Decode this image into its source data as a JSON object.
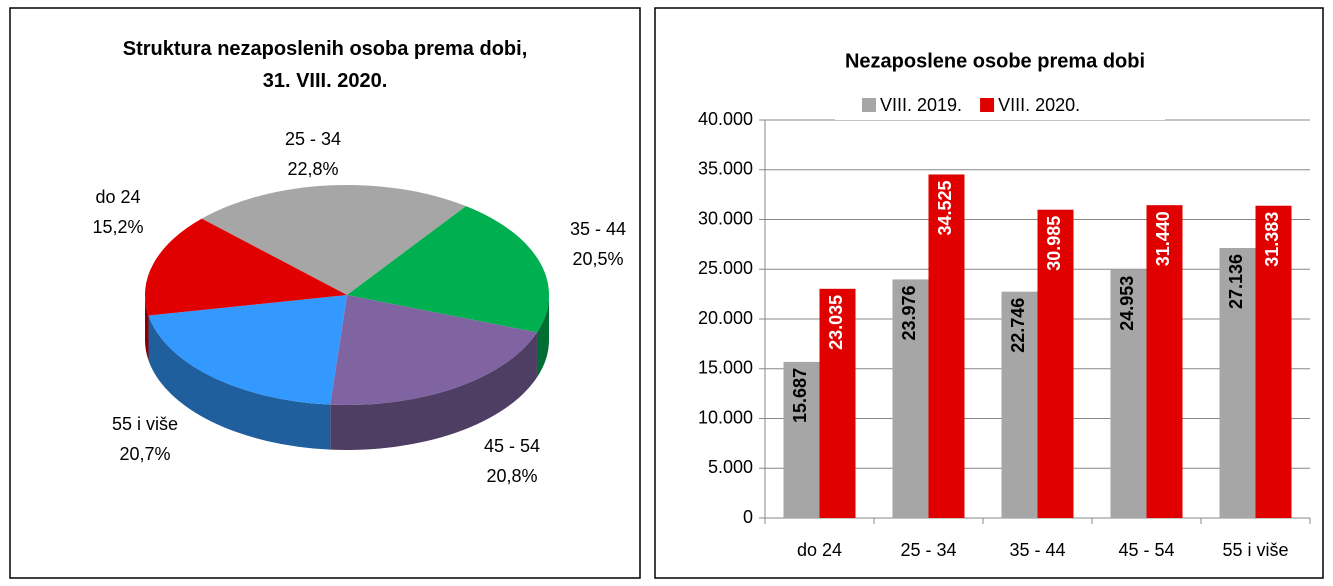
{
  "chart_data": [
    {
      "type": "pie",
      "title": "Struktura nezaposlenih osoba prema dobi, 31. VIII. 2020.",
      "categories": [
        "25 - 34",
        "35 - 44",
        "45 - 54",
        "55 i više",
        "do 24"
      ],
      "values": [
        22.8,
        20.5,
        20.8,
        20.7,
        15.2
      ],
      "value_labels": [
        "22,8%",
        "20,5%",
        "20,8%",
        "20,7%",
        "15,2%"
      ],
      "colors": [
        "#a6a6a6",
        "#00b050",
        "#8064a2",
        "#3399ff",
        "#e00000"
      ]
    },
    {
      "type": "bar",
      "title": "Nezaposlene osobe prema dobi",
      "categories": [
        "do 24",
        "25 - 34",
        "35 - 44",
        "45 - 54",
        "55 i više"
      ],
      "series": [
        {
          "name": "VIII. 2019.",
          "color": "#a6a6a6",
          "values": [
            15687,
            23976,
            22746,
            24953,
            27136
          ],
          "value_labels": [
            "15.687",
            "23.976",
            "22.746",
            "24.953",
            "27.136"
          ]
        },
        {
          "name": "VIII. 2020.",
          "color": "#e00000",
          "values": [
            23035,
            34525,
            30985,
            31440,
            31383
          ],
          "value_labels": [
            "23.035",
            "34.525",
            "30.985",
            "31.440",
            "31.383"
          ]
        }
      ],
      "ylim": [
        0,
        40000
      ],
      "yticks": [
        0,
        {
          "value": 5000,
          "label": "5.000"
        },
        {
          "value": 10000,
          "label": "10.000"
        },
        {
          "value": 15000,
          "label": "15.000"
        },
        {
          "value": 20000,
          "label": "20.000"
        },
        {
          "value": 25000,
          "label": "25.000"
        },
        {
          "value": 30000,
          "label": "30.000"
        },
        {
          "value": 35000,
          "label": "35.000"
        },
        {
          "value": 40000,
          "label": "40.000"
        }
      ],
      "grid": true,
      "legend": "top"
    }
  ]
}
